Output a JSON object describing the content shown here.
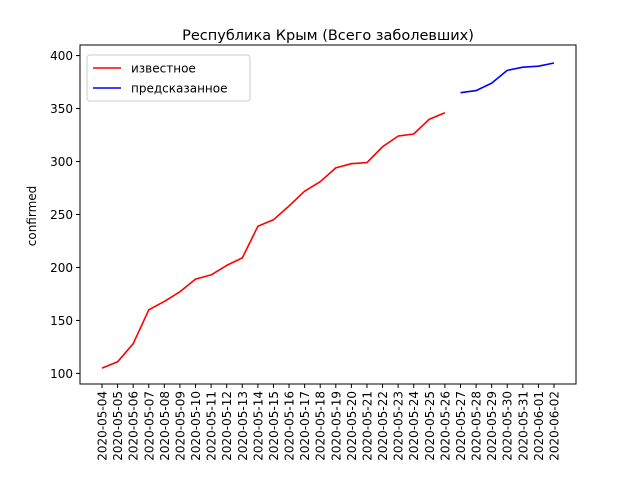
{
  "chart_data": {
    "type": "line",
    "title": "Республика Крым (Всего заболевших)",
    "xlabel": "",
    "ylabel": "confirmed",
    "x": [
      "2020-05-04",
      "2020-05-05",
      "2020-05-06",
      "2020-05-07",
      "2020-05-08",
      "2020-05-09",
      "2020-05-10",
      "2020-05-11",
      "2020-05-12",
      "2020-05-13",
      "2020-05-14",
      "2020-05-15",
      "2020-05-16",
      "2020-05-17",
      "2020-05-18",
      "2020-05-19",
      "2020-05-20",
      "2020-05-21",
      "2020-05-22",
      "2020-05-23",
      "2020-05-24",
      "2020-05-25",
      "2020-05-26",
      "2020-05-27",
      "2020-05-28",
      "2020-05-29",
      "2020-05-30",
      "2020-05-31",
      "2020-06-01",
      "2020-06-02"
    ],
    "yticks": [
      100,
      150,
      200,
      250,
      300,
      350,
      400
    ],
    "ylim": [
      90,
      410
    ],
    "grid": false,
    "legend": "top-left",
    "series": [
      {
        "name": "известное",
        "color": "#ff0000",
        "x": [
          "2020-05-04",
          "2020-05-05",
          "2020-05-06",
          "2020-05-07",
          "2020-05-08",
          "2020-05-09",
          "2020-05-10",
          "2020-05-11",
          "2020-05-12",
          "2020-05-13",
          "2020-05-14",
          "2020-05-15",
          "2020-05-16",
          "2020-05-17",
          "2020-05-18",
          "2020-05-19",
          "2020-05-20",
          "2020-05-21",
          "2020-05-22",
          "2020-05-23",
          "2020-05-24",
          "2020-05-25",
          "2020-05-26"
        ],
        "values": [
          105,
          111,
          128,
          160,
          168,
          177,
          189,
          193,
          202,
          209,
          239,
          245,
          258,
          272,
          281,
          294,
          298,
          299,
          314,
          324,
          326,
          340,
          346
        ]
      },
      {
        "name": "предсказанное",
        "color": "#0000ff",
        "x": [
          "2020-05-27",
          "2020-05-28",
          "2020-05-29",
          "2020-05-30",
          "2020-05-31",
          "2020-06-01",
          "2020-06-02"
        ],
        "values": [
          365,
          367,
          374,
          386,
          389,
          390,
          393
        ]
      }
    ]
  }
}
